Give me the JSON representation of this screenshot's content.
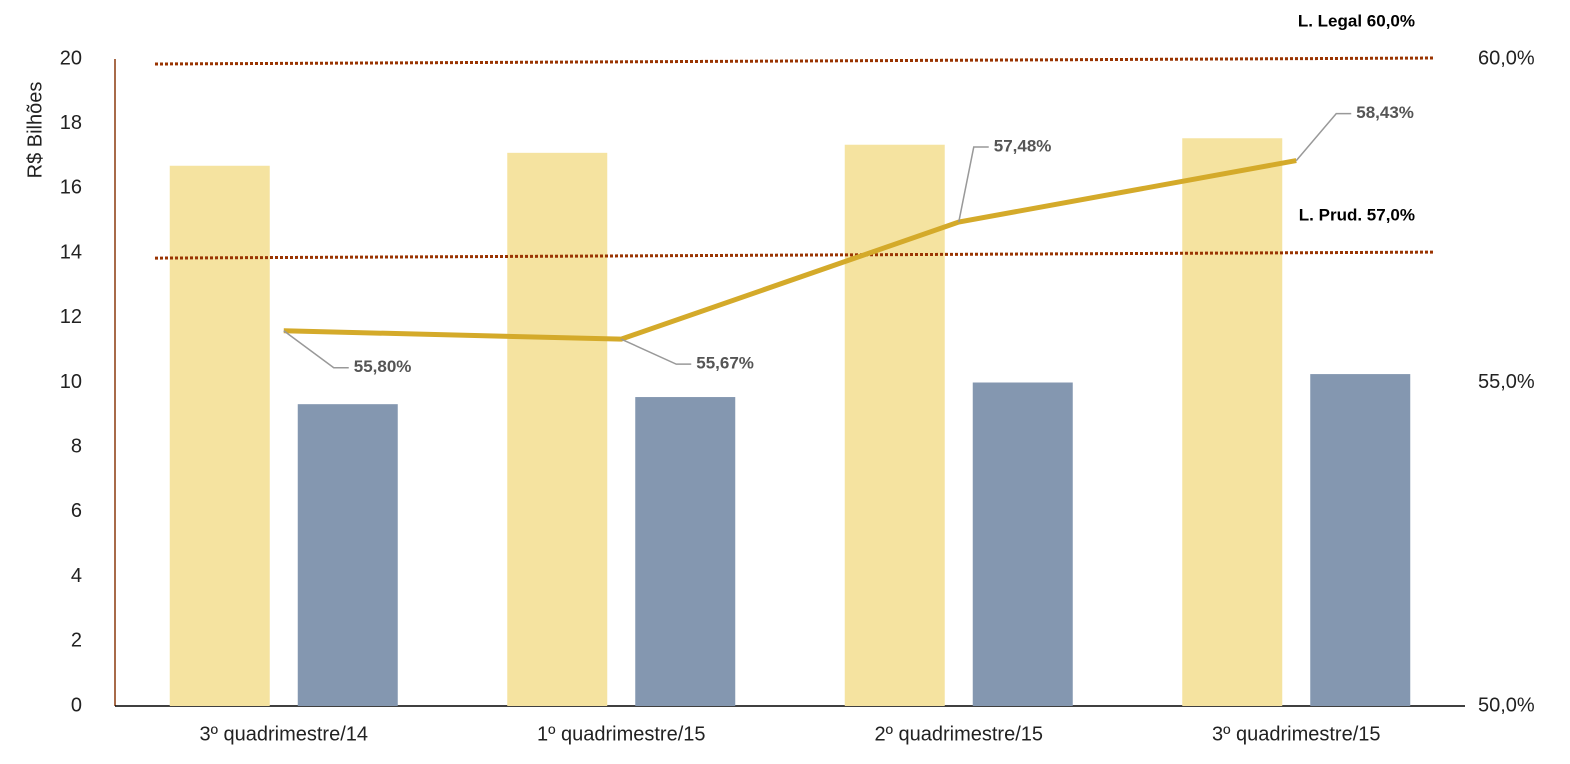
{
  "chart_data": {
    "type": "bar_line",
    "y_label": "R$ Bilhões",
    "categories": [
      "3º quadrimestre/14",
      "1º quadrimestre/15",
      "2º quadrimestre/15",
      "3º quadrimestre/15"
    ],
    "series": [
      {
        "type": "bar",
        "color": "#f5e3a0",
        "values": [
          16.7,
          17.1,
          17.35,
          17.55
        ]
      },
      {
        "type": "bar",
        "color": "#8497b0",
        "values": [
          9.33,
          9.55,
          10.0,
          10.26
        ]
      },
      {
        "type": "line",
        "axis": "y2",
        "color": "#d4aa2a",
        "values": [
          55.8,
          55.67,
          57.48,
          58.43
        ],
        "value_labels": [
          "55,80%",
          "55,67%",
          "57,48%",
          "58,43%"
        ]
      }
    ],
    "reference_lines": [
      {
        "axis": "y2",
        "value": 60,
        "label": "L. Legal 60,0%",
        "color": "#993300"
      },
      {
        "axis": "y2",
        "value": 57,
        "label": "L. Prud. 57,0%",
        "color": "#993300"
      }
    ],
    "ylim": [
      0,
      20
    ],
    "yticks": [
      0,
      2,
      4,
      6,
      8,
      10,
      12,
      14,
      16,
      18,
      20
    ],
    "y2lim": [
      50,
      60
    ],
    "y2ticks": [
      {
        "value": 50,
        "label": "50,0%"
      },
      {
        "value": 55,
        "label": "55,0%"
      },
      {
        "value": 60,
        "label": "60,0%"
      }
    ]
  }
}
